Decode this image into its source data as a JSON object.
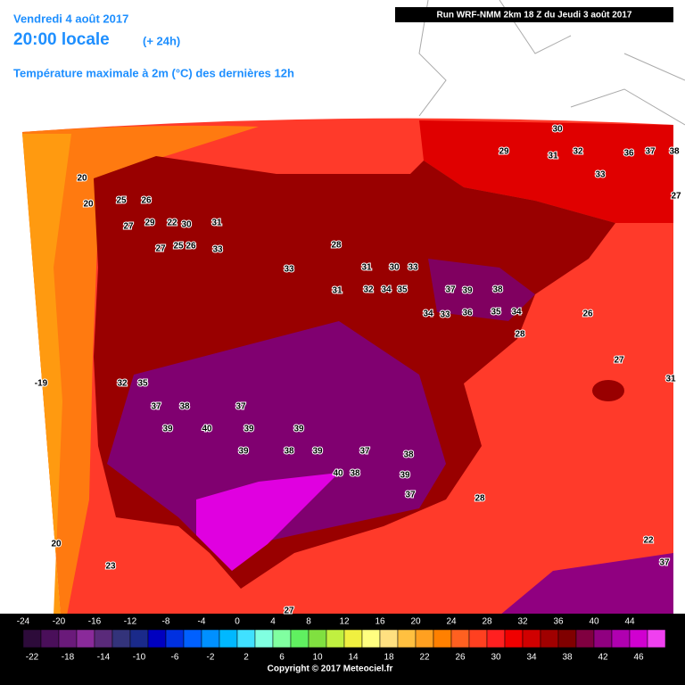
{
  "header": {
    "date": "Vendredi 4 août 2017",
    "time": "20:00 locale",
    "lead": "(+ 24h)",
    "parameter": "Température maximale à 2m (°C) des dernières 12h",
    "run": "Run WRF-NMM 2km 18 Z du Jeudi 3 août 2017"
  },
  "map_labels": [
    20,
    20,
    25,
    26,
    27,
    29,
    22,
    30,
    31,
    27,
    25,
    26,
    33,
    28,
    33,
    31,
    30,
    33,
    31,
    32,
    34,
    35,
    37,
    39,
    38,
    34,
    33,
    36,
    35,
    34,
    28,
    26,
    27,
    31,
    -19,
    32,
    35,
    37,
    38,
    37,
    39,
    40,
    39,
    39,
    38,
    39,
    39,
    40,
    38,
    37,
    38,
    39,
    37,
    28,
    20,
    23,
    22,
    37,
    27,
    30,
    29,
    31,
    32,
    33,
    36,
    37,
    38,
    27
  ],
  "legend": {
    "top_labels": [
      -24,
      -20,
      -16,
      -12,
      -8,
      -4,
      0,
      4,
      8,
      12,
      16,
      20,
      24,
      28,
      32,
      36,
      40,
      44
    ],
    "bottom_labels": [
      -22,
      -18,
      -14,
      -10,
      -6,
      -2,
      2,
      6,
      10,
      14,
      18,
      22,
      26,
      30,
      34,
      38,
      42,
      46
    ],
    "colors": [
      "#2d0b3a",
      "#4a0f5a",
      "#6a1a7a",
      "#8a2a9a",
      "#5a2a7a",
      "#33337a",
      "#1a2a8a",
      "#0000c0",
      "#0030e0",
      "#0060ff",
      "#0090ff",
      "#00b8ff",
      "#40e0ff",
      "#80ffe0",
      "#80ffa0",
      "#60f060",
      "#80e040",
      "#c0f040",
      "#f0f040",
      "#ffff80",
      "#ffe080",
      "#ffc040",
      "#ffa020",
      "#ff8000",
      "#ff6020",
      "#ff4020",
      "#ff2020",
      "#f00000",
      "#d00000",
      "#a00000",
      "#800000",
      "#800040",
      "#900080",
      "#b000b0",
      "#d000d0",
      "#f040f0"
    ]
  },
  "footer": {
    "copyright": "Copyright © 2017 Meteociel.fr"
  }
}
